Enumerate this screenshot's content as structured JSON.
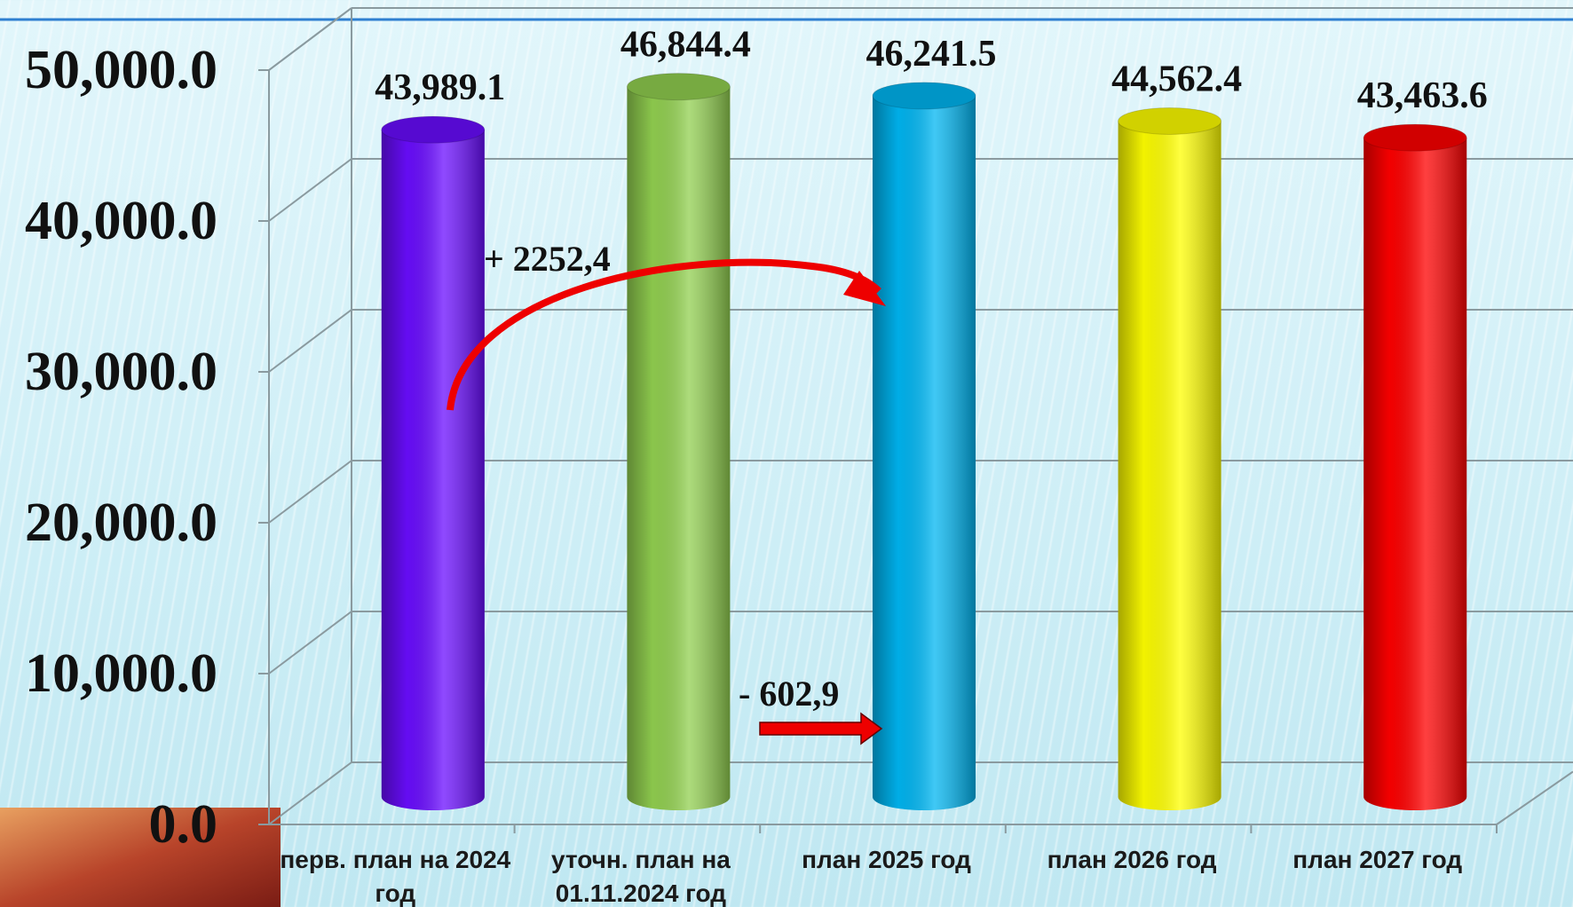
{
  "chart_data": {
    "type": "bar3d",
    "categories": [
      "перв. план на 2024 год",
      "уточн. план на 01.11.2024 год",
      "план 2025 год",
      "план 2026 год",
      "план 2027 год"
    ],
    "values": [
      43989.1,
      46844.4,
      46241.5,
      44562.4,
      43463.6
    ],
    "value_labels": [
      "43,989.1",
      "46,844.4",
      "46,241.5",
      "44,562.4",
      "43,463.6"
    ],
    "colors": [
      "#6a0dff",
      "#92d050",
      "#00b6f2",
      "#ffff00",
      "#ff0000"
    ],
    "ylim": [
      0,
      50000
    ],
    "yticks": [
      {
        "value": 0,
        "label": "0.0"
      },
      {
        "value": 10000,
        "label": "10,000.0"
      },
      {
        "value": 20000,
        "label": "20,000.0"
      },
      {
        "value": 30000,
        "label": "30,000.0"
      },
      {
        "value": 40000,
        "label": "40,000.0"
      },
      {
        "value": 50000,
        "label": "50,000.0"
      }
    ],
    "grid": true,
    "annotations": [
      "+ 2252,4",
      "- 602,9"
    ]
  }
}
